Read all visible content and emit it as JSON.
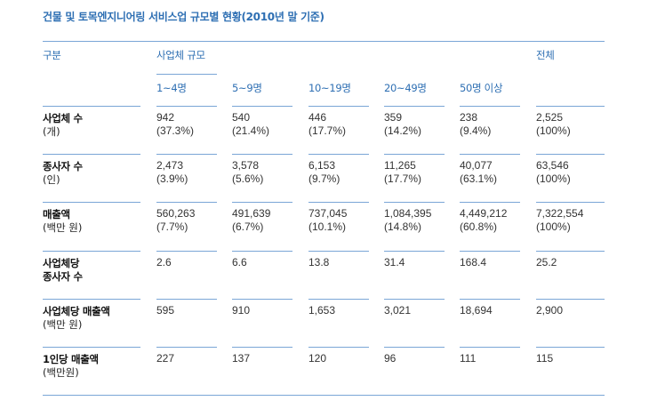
{
  "title": "건물 및 토목엔지니어링 서비스업 규모별 현황(2010년 말 기준)",
  "header": {
    "category": "구분",
    "group": "사업체 규모",
    "total": "전체",
    "sizes": [
      "1~4명",
      "5~9명",
      "10~19명",
      "20~49명",
      "50명 이상"
    ]
  },
  "rows": [
    {
      "label": "사업체 수",
      "unit": "(개)",
      "values": [
        "942",
        "540",
        "446",
        "359",
        "238",
        "2,525"
      ],
      "shares": [
        "(37.3%)",
        "(21.4%)",
        "(17.7%)",
        "(14.2%)",
        "(9.4%)",
        "(100%)"
      ]
    },
    {
      "label": "종사자 수",
      "unit": "(인)",
      "values": [
        "2,473",
        "3,578",
        "6,153",
        "11,265",
        "40,077",
        "63,546"
      ],
      "shares": [
        "(3.9%)",
        "(5.6%)",
        "(9.7%)",
        "(17.7%)",
        "(63.1%)",
        "(100%)"
      ]
    },
    {
      "label": "매출액",
      "unit": "(백만 원)",
      "values": [
        "560,263",
        "491,639",
        "737,045",
        "1,084,395",
        "4,449,212",
        "7,322,554"
      ],
      "shares": [
        "(7.7%)",
        "(6.7%)",
        "(10.1%)",
        "(14.8%)",
        "(60.8%)",
        "(100%)"
      ]
    },
    {
      "label": "사업체당",
      "label2": "종사자 수",
      "values": [
        "2.6",
        "6.6",
        "13.8",
        "31.4",
        "168.4",
        "25.2"
      ]
    },
    {
      "label": "사업체당 매출액",
      "unit": "(백만 원)",
      "values": [
        "595",
        "910",
        "1,653",
        "3,021",
        "18,694",
        "2,900"
      ]
    },
    {
      "label": "1인당 매출액",
      "unit": "(백만원)",
      "values": [
        "227",
        "137",
        "120",
        "96",
        "111",
        "115"
      ]
    }
  ]
}
